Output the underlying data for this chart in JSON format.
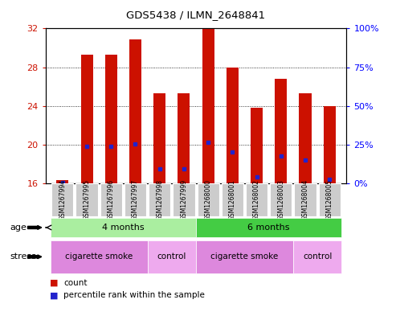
{
  "title": "GDS5438 / ILMN_2648841",
  "samples": [
    "GSM1267994",
    "GSM1267995",
    "GSM1267996",
    "GSM1267997",
    "GSM1267998",
    "GSM1267999",
    "GSM1268000",
    "GSM1268001",
    "GSM1268002",
    "GSM1268003",
    "GSM1268004",
    "GSM1268005"
  ],
  "red_values": [
    16.3,
    29.3,
    29.3,
    30.9,
    25.3,
    25.3,
    32.0,
    28.0,
    23.8,
    26.8,
    25.3,
    24.0
  ],
  "blue_values": [
    16.1,
    19.8,
    19.8,
    20.1,
    17.5,
    17.5,
    20.2,
    19.2,
    16.7,
    18.8,
    18.4,
    16.4
  ],
  "ylim_left": [
    16,
    32
  ],
  "ylim_right": [
    0,
    100
  ],
  "yticks_left": [
    16,
    20,
    24,
    28,
    32
  ],
  "yticks_right": [
    0,
    25,
    50,
    75,
    100
  ],
  "bar_width": 0.5,
  "red_color": "#CC1100",
  "blue_color": "#2222CC",
  "age_groups": [
    {
      "label": "4 months",
      "start": 0,
      "end": 6,
      "color": "#AAEEA0"
    },
    {
      "label": "6 months",
      "start": 6,
      "end": 12,
      "color": "#44CC44"
    }
  ],
  "stress_groups": [
    {
      "label": "cigarette smoke",
      "start": 0,
      "end": 4,
      "color": "#DD88DD"
    },
    {
      "label": "control",
      "start": 4,
      "end": 6,
      "color": "#EEAAEE"
    },
    {
      "label": "cigarette smoke",
      "start": 6,
      "end": 10,
      "color": "#DD88DD"
    },
    {
      "label": "control",
      "start": 10,
      "end": 12,
      "color": "#EEAAEE"
    }
  ],
  "legend_red_label": "count",
  "legend_blue_label": "percentile rank within the sample",
  "age_label": "age",
  "stress_label": "stress"
}
